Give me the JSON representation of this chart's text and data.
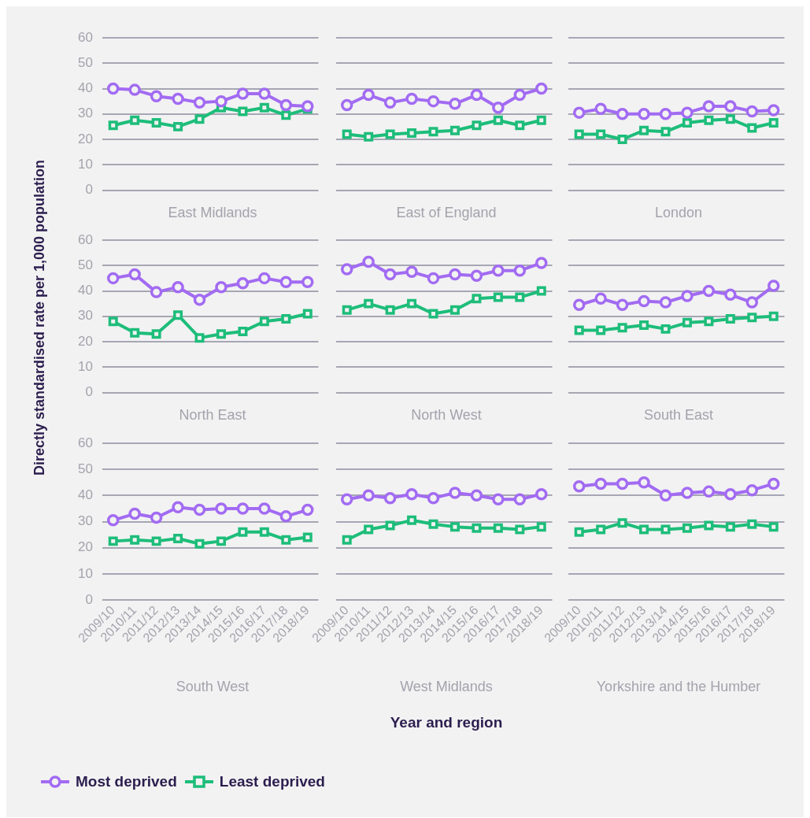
{
  "chart_data": [
    {
      "type": "line",
      "title": "East Midlands",
      "categories": [
        "2009/10",
        "2010/11",
        "2011/12",
        "2012/13",
        "2013/14",
        "2014/15",
        "2015/16",
        "2016/17",
        "2017/18",
        "2018/19"
      ],
      "ylim": [
        0,
        60
      ],
      "yticks": [
        0,
        10,
        20,
        30,
        40,
        50,
        60
      ],
      "grid": "y",
      "tick_labels": "y",
      "legend": false,
      "series": [
        {
          "color": "#a26bf2",
          "marker": "circle",
          "values": [
            40,
            39.5,
            37,
            36,
            34.5,
            35,
            38,
            38,
            33.5,
            33
          ]
        },
        {
          "color": "#1dbd7a",
          "marker": "square",
          "values": [
            25.5,
            27.5,
            26.5,
            25,
            28,
            32.5,
            31,
            32.5,
            29.5,
            32
          ]
        }
      ]
    },
    {
      "type": "line",
      "title": "East of England",
      "categories": [
        "2009/10",
        "2010/11",
        "2011/12",
        "2012/13",
        "2013/14",
        "2014/15",
        "2015/16",
        "2016/17",
        "2017/18",
        "2018/19"
      ],
      "ylim": [
        0,
        60
      ],
      "yticks": [
        0,
        10,
        20,
        30,
        40,
        50,
        60
      ],
      "grid": "y",
      "tick_labels": false,
      "legend": false,
      "series": [
        {
          "color": "#a26bf2",
          "marker": "circle",
          "values": [
            33.5,
            37.5,
            34.5,
            36,
            35,
            34,
            37.5,
            32.5,
            37.5,
            40
          ]
        },
        {
          "color": "#1dbd7a",
          "marker": "square",
          "values": [
            22,
            21,
            22,
            22.5,
            23,
            23.5,
            25.5,
            27.5,
            25.5,
            27.5
          ]
        }
      ]
    },
    {
      "type": "line",
      "title": "London",
      "categories": [
        "2009/10",
        "2010/11",
        "2011/12",
        "2012/13",
        "2013/14",
        "2014/15",
        "2015/16",
        "2016/17",
        "2017/18",
        "2018/19"
      ],
      "ylim": [
        0,
        60
      ],
      "yticks": [
        0,
        10,
        20,
        30,
        40,
        50,
        60
      ],
      "grid": "y",
      "tick_labels": false,
      "legend": false,
      "series": [
        {
          "color": "#a26bf2",
          "marker": "circle",
          "values": [
            30.5,
            32,
            30,
            30,
            30,
            30.5,
            33,
            33,
            31,
            31.5
          ]
        },
        {
          "color": "#1dbd7a",
          "marker": "square",
          "values": [
            22,
            22,
            20,
            23.5,
            23,
            26.5,
            27.5,
            28,
            24.5,
            26.5
          ]
        }
      ]
    },
    {
      "type": "line",
      "title": "North East",
      "ylabel": "Directly standardised rate per 1,000 population",
      "categories": [
        "2009/10",
        "2010/11",
        "2011/12",
        "2012/13",
        "2013/14",
        "2014/15",
        "2015/16",
        "2016/17",
        "2017/18",
        "2018/19"
      ],
      "ylim": [
        0,
        60
      ],
      "yticks": [
        0,
        10,
        20,
        30,
        40,
        50,
        60
      ],
      "grid": "y",
      "tick_labels": "y",
      "legend": false,
      "series": [
        {
          "color": "#a26bf2",
          "marker": "circle",
          "values": [
            45,
            46.5,
            39.5,
            41.5,
            36.5,
            41.5,
            43,
            45,
            43.5,
            43.5
          ]
        },
        {
          "color": "#1dbd7a",
          "marker": "square",
          "values": [
            28,
            23.5,
            23,
            30.5,
            21.5,
            23,
            24,
            28,
            29,
            31
          ]
        }
      ]
    },
    {
      "type": "line",
      "title": "North West",
      "categories": [
        "2009/10",
        "2010/11",
        "2011/12",
        "2012/13",
        "2013/14",
        "2014/15",
        "2015/16",
        "2016/17",
        "2017/18",
        "2018/19"
      ],
      "ylim": [
        0,
        60
      ],
      "yticks": [
        0,
        10,
        20,
        30,
        40,
        50,
        60
      ],
      "grid": "y",
      "tick_labels": false,
      "legend": false,
      "series": [
        {
          "color": "#a26bf2",
          "marker": "circle",
          "values": [
            48.5,
            51.5,
            46.5,
            47.5,
            45,
            46.5,
            46,
            48,
            48,
            51
          ]
        },
        {
          "color": "#1dbd7a",
          "marker": "square",
          "values": [
            32.5,
            35,
            32.5,
            35,
            31,
            32.5,
            37,
            37.5,
            37.5,
            40
          ]
        }
      ]
    },
    {
      "type": "line",
      "title": "South East",
      "categories": [
        "2009/10",
        "2010/11",
        "2011/12",
        "2012/13",
        "2013/14",
        "2014/15",
        "2015/16",
        "2016/17",
        "2017/18",
        "2018/19"
      ],
      "ylim": [
        0,
        60
      ],
      "yticks": [
        0,
        10,
        20,
        30,
        40,
        50,
        60
      ],
      "grid": "y",
      "tick_labels": false,
      "legend": false,
      "series": [
        {
          "color": "#a26bf2",
          "marker": "circle",
          "values": [
            34.5,
            37,
            34.5,
            36,
            35.5,
            38,
            40,
            38.5,
            35.5,
            42
          ]
        },
        {
          "color": "#1dbd7a",
          "marker": "square",
          "values": [
            24.5,
            24.5,
            25.5,
            26.5,
            25,
            27.5,
            28,
            29,
            29.5,
            30
          ]
        }
      ]
    },
    {
      "type": "line",
      "title": "South West",
      "categories": [
        "2009/10",
        "2010/11",
        "2011/12",
        "2012/13",
        "2013/14",
        "2014/15",
        "2015/16",
        "2016/17",
        "2017/18",
        "2018/19"
      ],
      "ylim": [
        0,
        60
      ],
      "yticks": [
        0,
        10,
        20,
        30,
        40,
        50,
        60
      ],
      "grid": "y",
      "legend": "bottom",
      "series": [
        {
          "name": "Most deprived",
          "color": "#a26bf2",
          "marker": "circle",
          "values": [
            30.5,
            33,
            31.5,
            35.5,
            34.5,
            35,
            35,
            35,
            32,
            34.5
          ]
        },
        {
          "name": "Least deprived",
          "color": "#1dbd7a",
          "marker": "square",
          "values": [
            22.5,
            23,
            22.5,
            23.5,
            21.5,
            22.5,
            26,
            26,
            23,
            24
          ]
        }
      ]
    },
    {
      "type": "line",
      "title": "West Midlands",
      "xlabel": "Year and region",
      "categories": [
        "2009/10",
        "2010/11",
        "2011/12",
        "2012/13",
        "2013/14",
        "2014/15",
        "2015/16",
        "2016/17",
        "2017/18",
        "2018/19"
      ],
      "ylim": [
        0,
        60
      ],
      "yticks": [
        0,
        10,
        20,
        30,
        40,
        50,
        60
      ],
      "grid": "y",
      "tick_labels": "x",
      "legend": false,
      "series": [
        {
          "color": "#a26bf2",
          "marker": "circle",
          "values": [
            38.5,
            40,
            39,
            40.5,
            39,
            41,
            40,
            38.5,
            38.5,
            40.5
          ]
        },
        {
          "color": "#1dbd7a",
          "marker": "square",
          "values": [
            23,
            27,
            28.5,
            30.5,
            29,
            28,
            27.5,
            27.5,
            27,
            28
          ]
        }
      ]
    },
    {
      "type": "line",
      "title": "Yorkshire and the Humber",
      "categories": [
        "2009/10",
        "2010/11",
        "2011/12",
        "2012/13",
        "2013/14",
        "2014/15",
        "2015/16",
        "2016/17",
        "2017/18",
        "2018/19"
      ],
      "ylim": [
        0,
        60
      ],
      "yticks": [
        0,
        10,
        20,
        30,
        40,
        50,
        60
      ],
      "grid": "y",
      "tick_labels": "x",
      "legend": false,
      "series": [
        {
          "color": "#a26bf2",
          "marker": "circle",
          "values": [
            43.5,
            44.5,
            44.5,
            45,
            40,
            41,
            41.5,
            40.5,
            42,
            44.5
          ]
        },
        {
          "color": "#1dbd7a",
          "marker": "square",
          "values": [
            26,
            27,
            29.5,
            27,
            27,
            27.5,
            28.5,
            28,
            29,
            28
          ]
        }
      ]
    }
  ]
}
